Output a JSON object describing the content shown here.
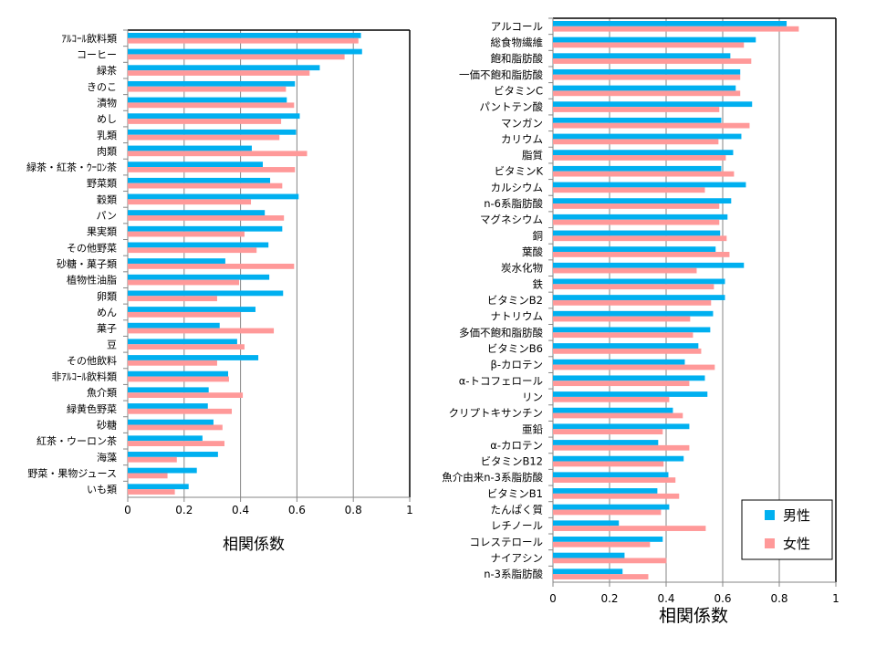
{
  "colors": {
    "male": "#00B0F0",
    "female": "#FF9999"
  },
  "chart_data": [
    {
      "type": "bar",
      "orientation": "horizontal",
      "xlabel": "相関係数",
      "xlim": [
        0,
        1
      ],
      "xticks": [
        "0",
        "0.2",
        "0.4",
        "0.6",
        "0.8",
        "1"
      ],
      "grid": true,
      "categories": [
        "ｱﾙｺｰﾙ飲料類",
        "コーヒー",
        "緑茶",
        "きのこ",
        "漬物",
        "めし",
        "乳類",
        "肉類",
        "緑茶・紅茶・ｳｰﾛﾝ茶",
        "野菜類",
        "穀類",
        "パン",
        "果実類",
        "その他野菜",
        "砂糖・菓子類",
        "植物性油脂",
        "卵類",
        "めん",
        "菓子",
        "豆",
        "その他飲料",
        "非ｱﾙｺｰﾙ飲料類",
        "魚介類",
        "緑黄色野菜",
        "砂糖",
        "紅茶・ウーロン茶",
        "海藻",
        "野菜・果物ジュース",
        "いも類"
      ],
      "series": [
        {
          "name": "男性",
          "values": [
            0.827,
            0.831,
            0.681,
            0.593,
            0.564,
            0.61,
            0.597,
            0.44,
            0.479,
            0.505,
            0.606,
            0.486,
            0.548,
            0.499,
            0.346,
            0.502,
            0.551,
            0.453,
            0.326,
            0.388,
            0.463,
            0.356,
            0.287,
            0.284,
            0.304,
            0.265,
            0.32,
            0.245,
            0.216
          ]
        },
        {
          "name": "女性",
          "values": [
            0.818,
            0.769,
            0.645,
            0.561,
            0.59,
            0.544,
            0.538,
            0.636,
            0.593,
            0.548,
            0.437,
            0.554,
            0.414,
            0.457,
            0.59,
            0.395,
            0.317,
            0.399,
            0.518,
            0.414,
            0.317,
            0.359,
            0.408,
            0.369,
            0.336,
            0.343,
            0.174,
            0.141,
            0.167
          ]
        }
      ]
    },
    {
      "type": "bar",
      "orientation": "horizontal",
      "xlabel": "相関係数",
      "xlim": [
        0,
        1
      ],
      "xticks": [
        "0",
        "0.2",
        "0.4",
        "0.6",
        "0.8",
        "1"
      ],
      "grid": true,
      "legend": {
        "position": "bottom-right",
        "entries": [
          "男性",
          "女性"
        ]
      },
      "categories": [
        "アルコール",
        "総食物繊維",
        "飽和脂肪酸",
        "一価不飽和脂肪酸",
        "ビタミンC",
        "パントテン酸",
        "マンガン",
        "カリウム",
        "脂質",
        "ビタミンK",
        "カルシウム",
        "n-6系脂肪酸",
        "マグネシウム",
        "銅",
        "葉酸",
        "炭水化物",
        "鉄",
        "ビタミンB2",
        "ナトリウム",
        "多価不飽和脂肪酸",
        "ビタミンB6",
        "β-カロテン",
        "α-トコフェロール",
        "リン",
        "クリプトキサンチン",
        "亜鉛",
        "α-カロテン",
        "ビタミンB12",
        "魚介由来n-3系脂肪酸",
        "ビタミンB1",
        "たんぱく質",
        "レチノール",
        "コレステロール",
        "ナイアシン",
        "n-3系脂肪酸"
      ],
      "series": [
        {
          "name": "男性",
          "values": [
            0.826,
            0.717,
            0.627,
            0.662,
            0.646,
            0.704,
            0.595,
            0.666,
            0.637,
            0.595,
            0.682,
            0.63,
            0.617,
            0.591,
            0.575,
            0.675,
            0.608,
            0.608,
            0.566,
            0.556,
            0.514,
            0.466,
            0.537,
            0.546,
            0.424,
            0.482,
            0.372,
            0.462,
            0.408,
            0.369,
            0.411,
            0.233,
            0.388,
            0.253,
            0.246
          ]
        },
        {
          "name": "女性",
          "values": [
            0.869,
            0.675,
            0.701,
            0.662,
            0.662,
            0.588,
            0.695,
            0.585,
            0.611,
            0.64,
            0.537,
            0.588,
            0.588,
            0.614,
            0.624,
            0.508,
            0.569,
            0.559,
            0.485,
            0.495,
            0.524,
            0.572,
            0.482,
            0.411,
            0.459,
            0.388,
            0.482,
            0.391,
            0.433,
            0.446,
            0.382,
            0.54,
            0.343,
            0.401,
            0.337
          ]
        }
      ]
    }
  ]
}
